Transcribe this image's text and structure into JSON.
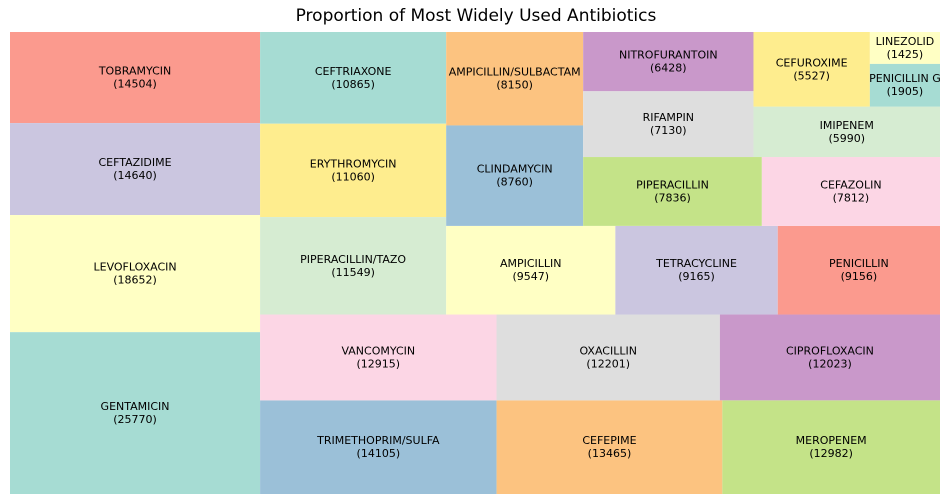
{
  "chart_data": {
    "type": "treemap",
    "title": "Proportion of Most Widely Used Antibiotics",
    "items": [
      {
        "name": "TOBRAMYCIN",
        "value": 14504,
        "color": "#fb9a8e"
      },
      {
        "name": "CEFTAZIDIME",
        "value": 14640,
        "color": "#cbc6e0"
      },
      {
        "name": "LEVOFLOXACIN",
        "value": 18652,
        "color": "#ffffc4"
      },
      {
        "name": "GENTAMICIN",
        "value": 25770,
        "color": "#a6dcd3"
      },
      {
        "name": "CEFTRIAXONE",
        "value": 10865,
        "color": "#a6dcd3"
      },
      {
        "name": "ERYTHROMYCIN",
        "value": 11060,
        "color": "#feed8e"
      },
      {
        "name": "PIPERACILLIN/TAZO",
        "value": 11549,
        "color": "#d6ecd2"
      },
      {
        "name": "AMPICILLIN/SULBACTAM",
        "value": 8150,
        "color": "#fcc380"
      },
      {
        "name": "CLINDAMYCIN",
        "value": 8760,
        "color": "#9bc0d8"
      },
      {
        "name": "NITROFURANTOIN",
        "value": 6428,
        "color": "#c998ca"
      },
      {
        "name": "RIFAMPIN",
        "value": 7130,
        "color": "#dedede"
      },
      {
        "name": "PIPERACILLIN",
        "value": 7836,
        "color": "#c4e388"
      },
      {
        "name": "CEFUROXIME",
        "value": 5527,
        "color": "#feed8e"
      },
      {
        "name": "LINEZOLID",
        "value": 1425,
        "color": "#ffffc4"
      },
      {
        "name": "PENICILLIN G",
        "value": 1905,
        "color": "#a6dcd3"
      },
      {
        "name": "IMIPENEM",
        "value": 5990,
        "color": "#d6ecd2"
      },
      {
        "name": "CEFAZOLIN",
        "value": 7812,
        "color": "#fcd6e5"
      },
      {
        "name": "AMPICILLIN",
        "value": 9547,
        "color": "#ffffc4"
      },
      {
        "name": "TETRACYCLINE",
        "value": 9165,
        "color": "#cbc6e0"
      },
      {
        "name": "PENICILLIN",
        "value": 9156,
        "color": "#fb9a8e"
      },
      {
        "name": "VANCOMYCIN",
        "value": 12915,
        "color": "#fcd6e5"
      },
      {
        "name": "OXACILLIN",
        "value": 12201,
        "color": "#dedede"
      },
      {
        "name": "CIPROFLOXACIN",
        "value": 12023,
        "color": "#c998ca"
      },
      {
        "name": "TRIMETHOPRIM/SULFA",
        "value": 14105,
        "color": "#9bc0d8"
      },
      {
        "name": "CEFEPIME",
        "value": 13465,
        "color": "#fcc380"
      },
      {
        "name": "MEROPENEM",
        "value": 12982,
        "color": "#c4e388"
      }
    ]
  }
}
